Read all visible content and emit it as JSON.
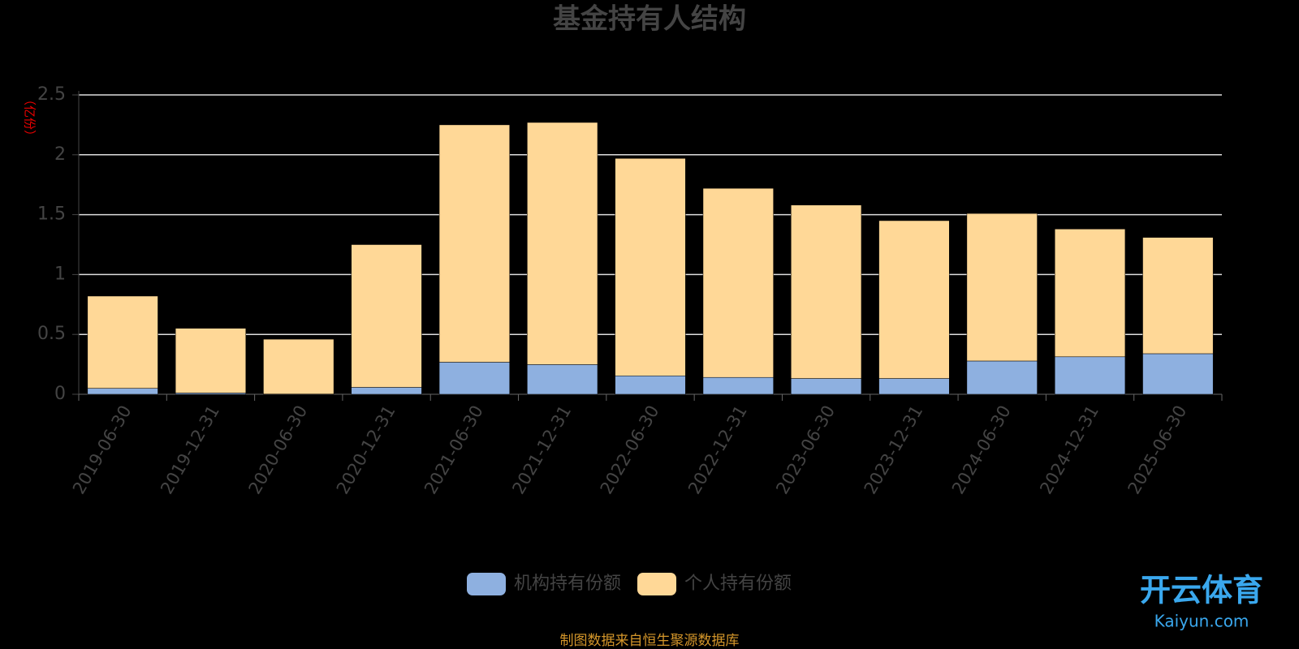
{
  "chart_data": {
    "type": "stacked_bar",
    "title": "基金持有人结构",
    "y_label": "（亿份）",
    "categories": [
      "2019-06-30",
      "2019-12-31",
      "2020-06-30",
      "2020-12-31",
      "2021-06-30",
      "2021-12-31",
      "2022-06-30",
      "2022-12-31",
      "2023-06-30",
      "2023-12-31",
      "2024-06-30",
      "2024-12-31",
      "2025-06-30"
    ],
    "series": [
      {
        "name": "机构持有份额",
        "color": "#8eb0e0",
        "values": [
          0.05,
          0.011,
          0.002,
          0.058,
          0.268,
          0.248,
          0.154,
          0.141,
          0.132,
          0.132,
          0.278,
          0.313,
          0.339
        ]
      },
      {
        "name": "个人持有份额",
        "color": "#ffd897",
        "values": [
          0.77,
          0.54,
          0.458,
          1.192,
          1.982,
          2.022,
          1.816,
          1.579,
          1.448,
          1.318,
          1.232,
          1.067,
          0.971
        ]
      }
    ],
    "ylim": [
      0,
      2.5
    ],
    "yticks": [
      0,
      0.5,
      1,
      1.5,
      2,
      2.5
    ],
    "grid": true,
    "source": "制图数据来自恒生聚源数据库",
    "watermark": [
      "开云体育",
      "Kaiyun.com"
    ]
  }
}
